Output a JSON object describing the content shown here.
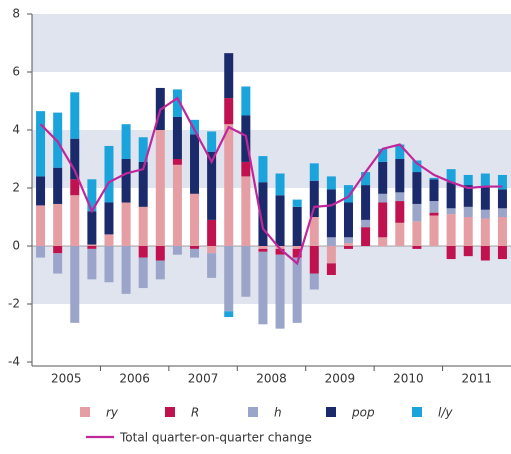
{
  "chart_data": {
    "type": "bar",
    "categories": [
      "2005",
      null,
      null,
      null,
      "2006",
      null,
      null,
      null,
      "2007",
      null,
      null,
      null,
      "2008",
      null,
      null,
      null,
      "2009",
      null,
      null,
      null,
      "2010",
      null,
      null,
      null,
      "2011",
      null,
      null,
      null
    ],
    "series": [
      {
        "name": "ry",
        "type": "bar",
        "color": "#e59ea3",
        "values": [
          1.4,
          1.45,
          1.75,
          0.05,
          0.4,
          1.5,
          1.35,
          4.0,
          2.8,
          1.8,
          -0.25,
          4.2,
          2.4,
          -0.1,
          -0.1,
          -0.1,
          1.0,
          -0.6,
          0.1,
          0,
          0.3,
          0.8,
          0.85,
          1.05,
          1.1,
          1.0,
          0.95,
          1.0
        ]
      },
      {
        "name": "R",
        "type": "bar",
        "color": "#c0124e",
        "values": [
          0,
          -0.25,
          0.55,
          -0.1,
          0,
          0,
          -0.4,
          -0.5,
          0.2,
          -0.1,
          0.9,
          0.9,
          0.5,
          -0.1,
          -0.2,
          -0.3,
          -0.95,
          -0.4,
          -0.1,
          0.65,
          1.2,
          0.75,
          -0.1,
          0.1,
          -0.45,
          -0.35,
          -0.5,
          -0.45
        ]
      },
      {
        "name": "h",
        "type": "bar",
        "color": "#9ba4c9",
        "values": [
          -0.4,
          -0.7,
          -2.65,
          -1.05,
          -1.25,
          -1.65,
          -1.05,
          -0.65,
          -0.3,
          -0.3,
          -0.85,
          -2.25,
          -1.75,
          -2.5,
          -2.55,
          -2.25,
          -0.55,
          0.3,
          0.2,
          0.25,
          0.3,
          0.3,
          0.6,
          0.4,
          0.2,
          0.35,
          0.3,
          0.3
        ]
      },
      {
        "name": "pop",
        "type": "bar",
        "color": "#1b2a6b",
        "values": [
          1.0,
          1.25,
          1.4,
          1.15,
          1.1,
          1.5,
          1.55,
          1.45,
          1.45,
          2.05,
          2.35,
          1.55,
          1.6,
          2.2,
          1.75,
          1.35,
          1.25,
          1.65,
          1.2,
          1.2,
          1.1,
          1.15,
          1.1,
          0.75,
          0.9,
          0.75,
          0.8,
          0.65
        ]
      },
      {
        "name": "l/y",
        "type": "bar",
        "color": "#1ba3dc",
        "values": [
          2.25,
          1.9,
          1.6,
          1.1,
          1.95,
          1.2,
          0.85,
          0,
          0.95,
          0.5,
          0.7,
          -0.2,
          1.0,
          0.9,
          0.75,
          0.25,
          0.6,
          0.45,
          0.6,
          0.45,
          0.45,
          0.5,
          0.4,
          0.05,
          0.45,
          0.35,
          0.45,
          0.5
        ]
      },
      {
        "name": "Total quarter-on-quarter change",
        "type": "line",
        "color": "#c0279a",
        "values": [
          4.2,
          3.6,
          2.6,
          1.2,
          2.2,
          2.5,
          2.65,
          4.7,
          5.1,
          4.0,
          2.9,
          4.1,
          3.8,
          0.6,
          -0.1,
          -0.6,
          1.35,
          1.4,
          1.7,
          2.55,
          3.35,
          3.5,
          2.85,
          2.45,
          2.2,
          2.0,
          2.05,
          2.05
        ]
      }
    ],
    "ylim": [
      -4,
      8
    ],
    "yticks": [
      -4,
      -2,
      0,
      2,
      4,
      6,
      8
    ],
    "grid": true
  }
}
